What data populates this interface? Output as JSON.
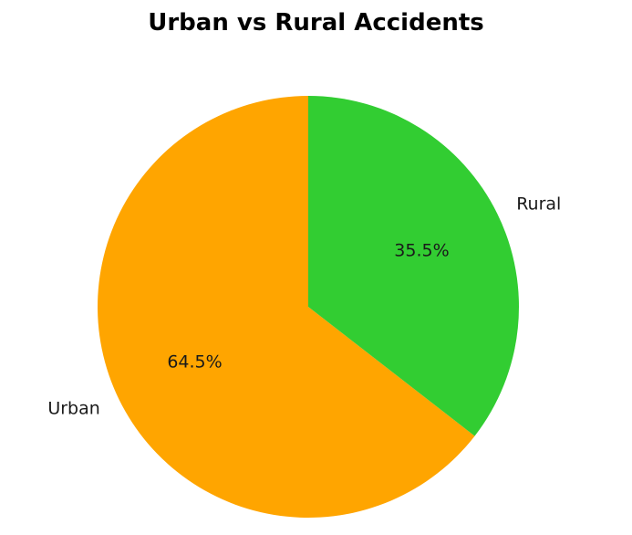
{
  "chart_data": {
    "type": "pie",
    "title": "Urban vs Rural Accidents",
    "categories": [
      "Urban",
      "Rural"
    ],
    "values": [
      64.5,
      35.5
    ],
    "labels": [
      "64.5%",
      "35.5%"
    ],
    "colors": [
      "#ffa500",
      "#32cd32"
    ],
    "start_angle_deg": 90,
    "direction": "counterclockwise",
    "legend": "none"
  }
}
